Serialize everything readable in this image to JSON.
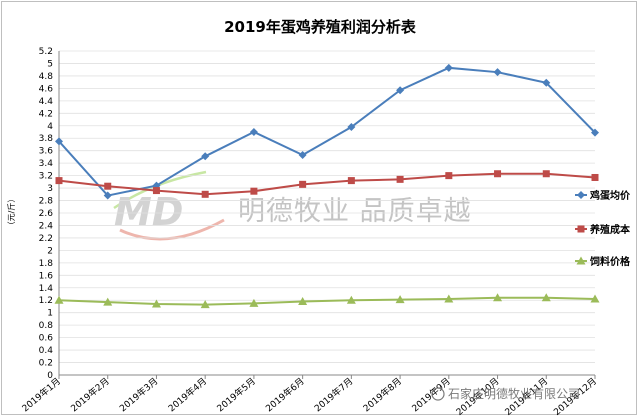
{
  "chart_data": {
    "type": "line",
    "title": "2019年蛋鸡养殖利润分析表",
    "ylabel": "（元/斤）",
    "xlabel": "",
    "ylim": [
      0,
      5.2
    ],
    "ytick_step": 0.2,
    "ytick_labels": [
      "0",
      "0.2",
      "0.4",
      "0.6",
      "0.8",
      "1",
      "1.2",
      "1.4",
      "1.6",
      "1.8",
      "2",
      "2.2",
      "2.4",
      "2.6",
      "2.8",
      "3",
      "3.2",
      "3.4",
      "3.6",
      "3.8",
      "4",
      "4.2",
      "4.4",
      "4.6",
      "4.8",
      "5",
      "5.2"
    ],
    "categories": [
      "2019年1月",
      "2019年2月",
      "2019年3月",
      "2019年4月",
      "2019年5月",
      "2019年6月",
      "2019年7月",
      "2019年8月",
      "2019年9月",
      "2019年10月",
      "2019年11月",
      "2019年12月"
    ],
    "grid": true,
    "legend_position": "right",
    "series": [
      {
        "name": "鸡蛋均价",
        "color": "#4a7ebb",
        "marker": "diamond",
        "values": [
          3.75,
          2.88,
          3.04,
          3.51,
          3.9,
          3.53,
          3.98,
          4.57,
          4.93,
          4.86,
          4.69,
          3.89
        ]
      },
      {
        "name": "养殖成本",
        "color": "#be4b48",
        "marker": "square",
        "values": [
          3.12,
          3.03,
          2.96,
          2.9,
          2.95,
          3.06,
          3.12,
          3.14,
          3.2,
          3.23,
          3.23,
          3.17
        ]
      },
      {
        "name": "饲料价格",
        "color": "#9bbb59",
        "marker": "triangle",
        "values": [
          1.2,
          1.17,
          1.14,
          1.13,
          1.15,
          1.18,
          1.2,
          1.21,
          1.22,
          1.24,
          1.24,
          1.22
        ]
      }
    ]
  },
  "watermark": {
    "logo_text": "MD",
    "brand_text": "明德牧业  品质卓越"
  },
  "footer": {
    "source_text": "石家庄明德牧业有限公司"
  }
}
